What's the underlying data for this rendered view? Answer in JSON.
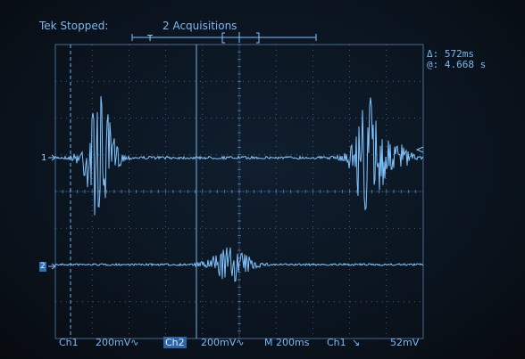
{
  "header": {
    "status": "Tek Stopped:",
    "acquisitions": "2 Acquisitions",
    "trigger_marker": "T"
  },
  "cursor_readout": {
    "delta": "Δ: 572ms",
    "at": "@: 4.668 s"
  },
  "markers": {
    "ch1": "1",
    "ch2": "2"
  },
  "bottom_bar": {
    "ch1_label": "Ch1",
    "ch1_scale": "200mV∿",
    "ch2_label": "Ch2",
    "ch2_scale": "200mV∿",
    "timebase": "M 200ms",
    "trigger_source": "Ch1",
    "trigger_slope": "↘",
    "trigger_level": "52mV"
  },
  "colors": {
    "trace": "#7fc4ff",
    "grid": "#5f8fbf",
    "text": "#7cb8f2"
  },
  "traces": {
    "ch1_bursts_time_s": [
      0.05,
      1.72
    ],
    "ch2_burst_time_s": 0.85,
    "ch1_burst_amplitude_div": 1.4,
    "ch2_burst_amplitude_div": 0.5
  }
}
